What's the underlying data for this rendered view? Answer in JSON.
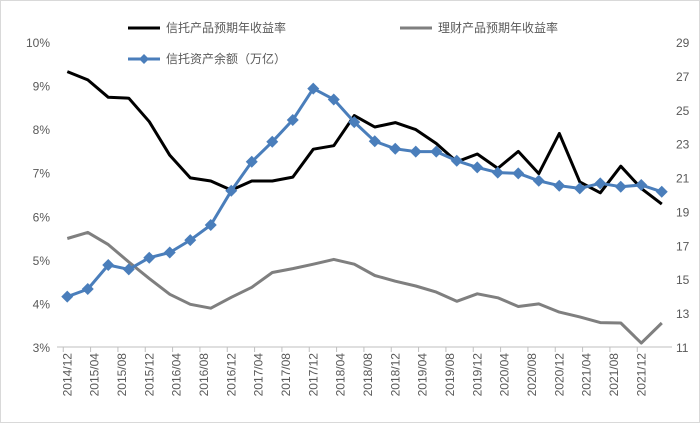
{
  "chart_data": {
    "type": "line",
    "title": "",
    "x": [
      "2014/12",
      "2015/03",
      "2015/06",
      "2015/09",
      "2015/12",
      "2016/03",
      "2016/06",
      "2016/09",
      "2016/12",
      "2017/03",
      "2017/06",
      "2017/09",
      "2017/12",
      "2018/03",
      "2018/06",
      "2018/09",
      "2018/12",
      "2019/03",
      "2019/06",
      "2019/09",
      "2019/12",
      "2020/03",
      "2020/06",
      "2020/09",
      "2020/12",
      "2021/03",
      "2021/06",
      "2021/09",
      "2021/12",
      "2022/03"
    ],
    "x_tick_labels": [
      "2014/12",
      "2015/04",
      "2015/08",
      "2015/12",
      "2016/04",
      "2016/08",
      "2016/12",
      "2017/04",
      "2017/08",
      "2017/12",
      "2018/04",
      "2018/08",
      "2018/12",
      "2019/04",
      "2019/08",
      "2019/12",
      "2020/04",
      "2020/08",
      "2020/12",
      "2021/04",
      "2021/08",
      "2021/12"
    ],
    "y_left": {
      "min": 3,
      "max": 10,
      "step": 1,
      "unit": "%",
      "tick_labels": [
        "3%",
        "4%",
        "5%",
        "6%",
        "7%",
        "8%",
        "9%",
        "10%"
      ]
    },
    "y_right": {
      "min": 11,
      "max": 29,
      "step": 2,
      "tick_labels": [
        "11",
        "13",
        "15",
        "17",
        "19",
        "21",
        "23",
        "25",
        "27",
        "29"
      ]
    },
    "grid": false,
    "legend_position": "top",
    "series": [
      {
        "name": "信托产品预期年收益率",
        "axis": "left",
        "color": "#000000",
        "markers": false,
        "values": [
          9.32,
          9.13,
          8.73,
          8.71,
          8.17,
          7.4,
          6.88,
          6.81,
          6.6,
          6.81,
          6.81,
          6.9,
          7.54,
          7.62,
          8.31,
          8.05,
          8.15,
          7.99,
          7.67,
          7.25,
          7.43,
          7.1,
          7.49,
          6.98,
          7.9,
          6.79,
          6.54,
          7.15,
          6.64,
          6.28
        ]
      },
      {
        "name": "理财产品预期年收益率",
        "axis": "left",
        "color": "#7f7f7f",
        "markers": false,
        "values": [
          5.49,
          5.63,
          5.35,
          4.95,
          4.57,
          4.21,
          3.98,
          3.89,
          4.14,
          4.37,
          4.71,
          4.8,
          4.9,
          5.01,
          4.9,
          4.64,
          4.51,
          4.4,
          4.26,
          4.05,
          4.22,
          4.13,
          3.93,
          3.99,
          3.8,
          3.69,
          3.56,
          3.55,
          3.09,
          3.55
        ]
      },
      {
        "name": "信托资产余额（万亿）",
        "axis": "right",
        "color": "#4a7ebb",
        "markers": true,
        "marker": "diamond",
        "values": [
          13.97,
          14.42,
          15.84,
          15.58,
          16.27,
          16.58,
          17.31,
          18.2,
          20.22,
          21.93,
          23.11,
          24.4,
          26.25,
          25.61,
          24.27,
          23.14,
          22.7,
          22.53,
          22.53,
          21.99,
          21.6,
          21.29,
          21.25,
          20.81,
          20.52,
          20.36,
          20.66,
          20.46,
          20.56,
          20.16
        ]
      }
    ]
  }
}
